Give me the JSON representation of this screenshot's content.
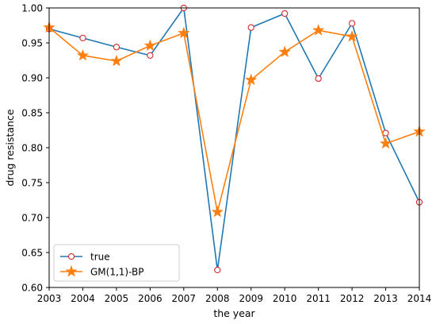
{
  "chart_data": {
    "type": "line",
    "title": "",
    "xlabel": "the year",
    "ylabel": "drug resistance",
    "x": [
      2003,
      2004,
      2005,
      2006,
      2007,
      2008,
      2009,
      2010,
      2011,
      2012,
      2013,
      2014
    ],
    "xlim": [
      2003,
      2014
    ],
    "ylim": [
      0.6,
      1.0
    ],
    "x_ticks": [
      "2003",
      "2004",
      "2005",
      "2006",
      "2007",
      "2008",
      "2009",
      "2010",
      "2011",
      "2012",
      "2013",
      "2014"
    ],
    "y_ticks": [
      {
        "value": 0.6,
        "label": "0.60"
      },
      {
        "value": 0.65,
        "label": "0.65"
      },
      {
        "value": 0.7,
        "label": "0.70"
      },
      {
        "value": 0.75,
        "label": "0.75"
      },
      {
        "value": 0.8,
        "label": "0.80"
      },
      {
        "value": 0.85,
        "label": "0.85"
      },
      {
        "value": 0.9,
        "label": "0.90"
      },
      {
        "value": 0.95,
        "label": "0.95"
      },
      {
        "value": 1.0,
        "label": "1.00"
      }
    ],
    "grid": false,
    "legend_position": "bottom-left",
    "series": [
      {
        "name": "true",
        "color": "#1f77b4",
        "marker": "circle",
        "marker_edge_color": "#d62728",
        "marker_face_color": "#ffffff",
        "values": [
          0.97,
          0.957,
          0.944,
          0.932,
          1.0,
          0.625,
          0.972,
          0.992,
          0.899,
          0.978,
          0.821,
          0.722
        ]
      },
      {
        "name": "GM(1,1)-BP",
        "color": "#ff7f0e",
        "marker": "star",
        "values": [
          0.972,
          0.932,
          0.924,
          0.946,
          0.964,
          0.708,
          0.897,
          0.937,
          0.968,
          0.959,
          0.806,
          0.823
        ]
      }
    ]
  }
}
